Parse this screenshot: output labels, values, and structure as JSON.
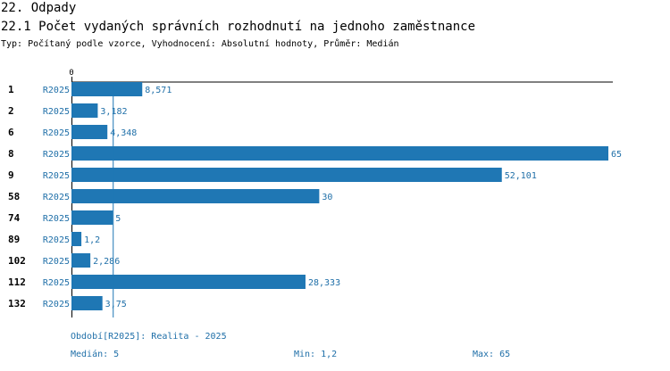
{
  "header": {
    "section_title": "22. Odpady",
    "chart_title": "22.1 Počet vydaných správních rozhodnutí na jednoho zaměstnance",
    "subtitle": "Typ: Počítaný podle vzorce, Vyhodnocení: Absolutní hodnoty, Průměr: Medián"
  },
  "chart_data": {
    "type": "bar",
    "orientation": "horizontal",
    "title": "22.1 Počet vydaných správních rozhodnutí na jednoho zaměstnance",
    "axis_zero_label": "0",
    "xlim": [
      0,
      65
    ],
    "categories": [
      "1",
      "2",
      "6",
      "8",
      "9",
      "58",
      "74",
      "89",
      "102",
      "112",
      "132"
    ],
    "series_labels": [
      "R2025",
      "R2025",
      "R2025",
      "R2025",
      "R2025",
      "R2025",
      "R2025",
      "R2025",
      "R2025",
      "R2025",
      "R2025"
    ],
    "values": [
      8.571,
      3.182,
      4.348,
      65,
      52.101,
      30,
      5,
      1.2,
      2.286,
      28.333,
      3.75
    ],
    "value_labels": [
      "8,571",
      "3,182",
      "4,348",
      "65",
      "52,101",
      "30",
      "5",
      "1,2",
      "2,286",
      "28,333",
      "3,75"
    ],
    "median": 5,
    "bar_color": "#1f77b4",
    "text_color": "#1f6fa8"
  },
  "footer": {
    "period": "Období[R2025]: Realita - 2025",
    "median": "Medián: 5",
    "min": "Min: 1,2",
    "max": "Max: 65"
  }
}
